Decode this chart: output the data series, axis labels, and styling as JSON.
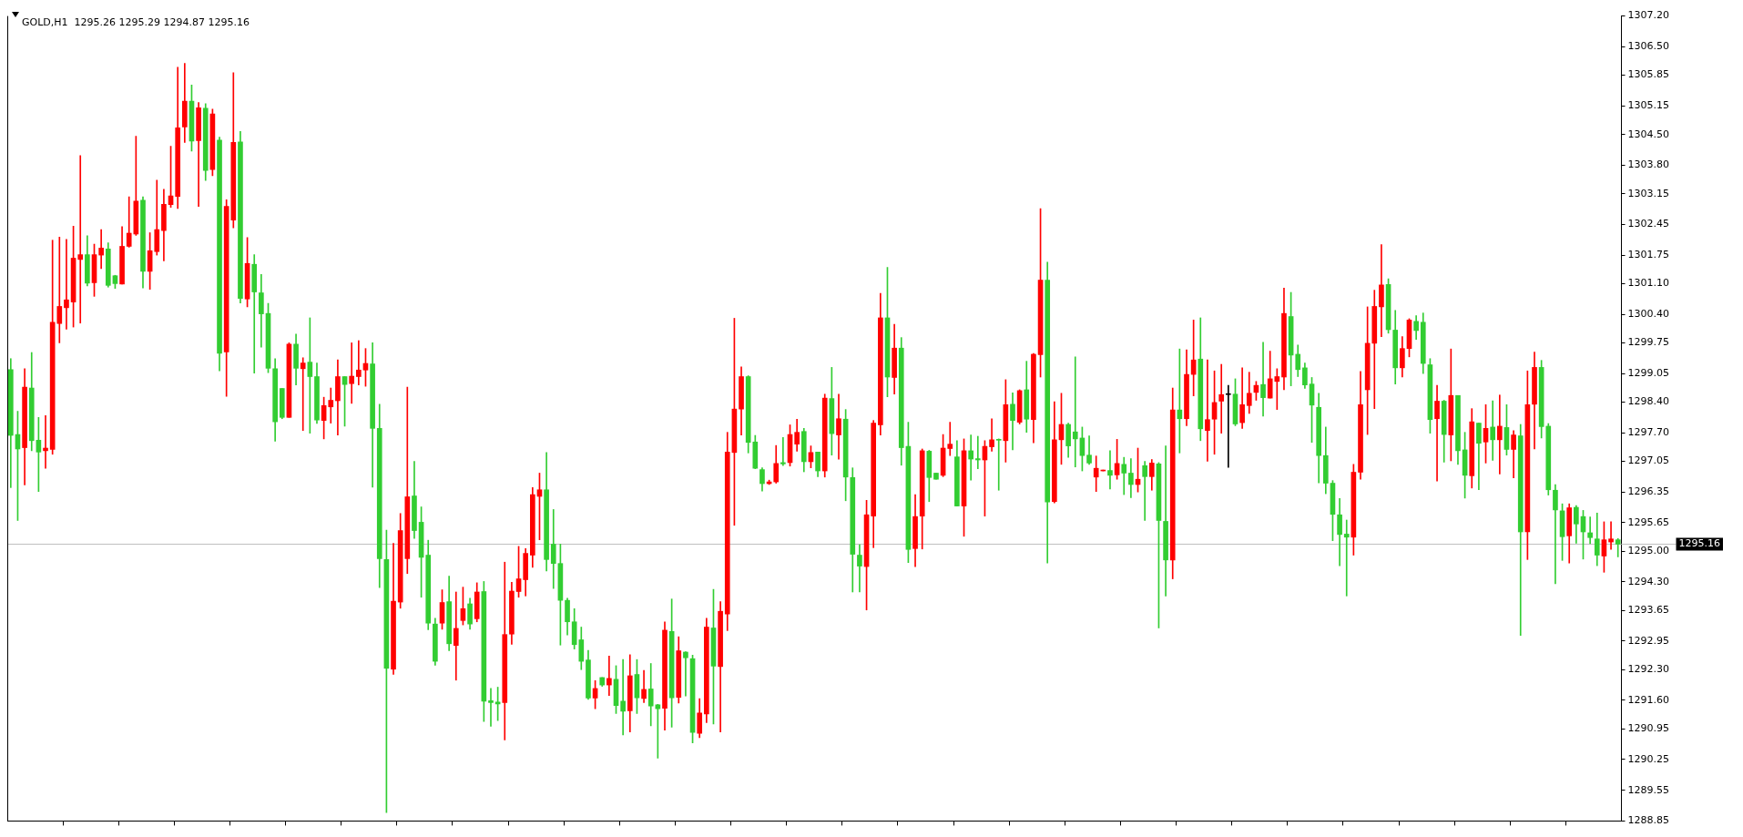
{
  "chart_data": {
    "type": "candlestick",
    "title": "GOLD,H1  1295.26 1295.29 1294.87 1295.16",
    "categories": [
      null,
      null,
      null,
      null,
      null,
      null,
      null,
      null,
      null,
      null,
      null,
      null,
      null,
      null,
      null,
      null,
      null,
      null,
      null,
      null,
      null,
      null,
      null,
      null,
      null,
      null,
      null,
      null,
      null,
      null,
      null,
      null,
      null,
      null,
      null,
      null,
      null,
      null,
      null,
      null,
      null,
      null,
      null,
      null,
      null,
      null,
      null,
      null,
      null,
      null,
      null,
      null,
      null,
      null,
      null,
      null,
      null,
      null,
      null,
      null,
      null,
      null,
      null,
      null,
      null,
      null,
      null,
      null,
      null,
      null,
      null,
      null,
      null,
      null,
      null,
      null,
      null,
      null,
      null,
      null,
      null,
      null,
      null,
      null,
      null,
      null,
      null,
      null,
      null,
      null,
      null,
      null,
      null,
      null,
      null,
      null,
      null,
      null,
      null,
      null,
      null,
      null,
      null,
      null,
      null,
      null,
      null,
      null,
      null,
      null,
      null,
      null,
      null,
      null,
      null,
      null,
      null,
      null,
      null,
      null,
      null,
      null,
      null,
      null,
      null,
      null,
      null,
      null,
      null,
      null,
      null,
      null,
      null,
      null,
      null,
      null,
      null,
      null,
      null,
      null,
      null,
      null,
      null,
      null,
      null,
      null,
      null,
      null,
      null,
      null,
      null,
      null,
      null,
      null,
      null,
      null,
      null,
      null,
      null,
      null,
      null,
      null,
      null,
      null,
      null,
      null,
      null,
      null,
      null,
      null,
      null,
      null,
      null,
      null,
      null,
      null,
      null,
      null,
      null,
      null,
      null,
      null,
      null,
      null,
      null,
      null,
      null,
      null,
      null,
      null,
      null,
      null,
      null,
      null,
      null,
      null,
      null,
      null,
      null,
      null,
      null,
      null,
      null,
      null,
      null,
      null,
      null,
      null,
      null,
      null,
      null,
      null,
      null,
      null,
      null,
      null,
      null,
      null,
      null,
      null,
      null,
      null,
      null,
      null,
      null,
      null,
      null,
      null,
      null,
      null,
      null,
      null
    ],
    "ohlc": [
      [
        1299.14,
        1299.39,
        1296.45,
        1297.64
      ],
      [
        1297.66,
        1298.19,
        1295.7,
        1297.33
      ],
      [
        1297.36,
        1299.16,
        1296.51,
        1298.74
      ],
      [
        1298.72,
        1299.53,
        1297.29,
        1297.52
      ],
      [
        1297.53,
        1298.05,
        1296.36,
        1297.26
      ],
      [
        1297.29,
        1298.09,
        1296.89,
        1297.35
      ],
      [
        1297.32,
        1302.09,
        1297.21,
        1300.22
      ],
      [
        1300.19,
        1302.16,
        1299.75,
        1300.58
      ],
      [
        1300.55,
        1302.11,
        1300.06,
        1300.73
      ],
      [
        1300.68,
        1302.41,
        1300.11,
        1301.68
      ],
      [
        1301.65,
        1304.02,
        1300.2,
        1301.76
      ],
      [
        1301.76,
        1302.19,
        1301.05,
        1301.11
      ],
      [
        1301.12,
        1302.0,
        1300.81,
        1301.76
      ],
      [
        1301.75,
        1302.33,
        1301.44,
        1301.91
      ],
      [
        1301.89,
        1302.03,
        1301.02,
        1301.06
      ],
      [
        1301.28,
        1301.29,
        1300.99,
        1301.1
      ],
      [
        1301.09,
        1302.4,
        1301.09,
        1301.95
      ],
      [
        1301.95,
        1303.08,
        1301.93,
        1302.25
      ],
      [
        1302.23,
        1304.46,
        1302.2,
        1302.98
      ],
      [
        1303.0,
        1303.08,
        1301.0,
        1301.38
      ],
      [
        1301.38,
        1302.26,
        1300.97,
        1301.85
      ],
      [
        1301.83,
        1303.46,
        1301.75,
        1302.33
      ],
      [
        1302.31,
        1303.25,
        1301.62,
        1302.91
      ],
      [
        1302.9,
        1304.23,
        1302.84,
        1303.1
      ],
      [
        1303.09,
        1306.03,
        1302.81,
        1304.65
      ],
      [
        1304.67,
        1306.12,
        1304.32,
        1305.26
      ],
      [
        1305.26,
        1305.63,
        1304.12,
        1304.35
      ],
      [
        1304.36,
        1305.23,
        1302.86,
        1305.11
      ],
      [
        1305.1,
        1305.2,
        1303.45,
        1303.68
      ],
      [
        1303.7,
        1305.08,
        1303.56,
        1304.97
      ],
      [
        1304.37,
        1304.44,
        1299.11,
        1299.51
      ],
      [
        1299.54,
        1303.01,
        1298.53,
        1302.86
      ],
      [
        1302.55,
        1305.91,
        1302.37,
        1304.32
      ],
      [
        1304.33,
        1304.57,
        1300.66,
        1300.76
      ],
      [
        1300.75,
        1302.15,
        1300.57,
        1301.56
      ],
      [
        1301.54,
        1301.76,
        1299.06,
        1300.91
      ],
      [
        1300.89,
        1301.31,
        1299.65,
        1300.41
      ],
      [
        1300.42,
        1300.65,
        1299.07,
        1299.17
      ],
      [
        1299.16,
        1299.39,
        1297.51,
        1297.95
      ],
      [
        1298.71,
        1298.71,
        1298.02,
        1298.05
      ],
      [
        1298.05,
        1299.75,
        1298.05,
        1299.72
      ],
      [
        1299.72,
        1299.95,
        1298.79,
        1299.17
      ],
      [
        1299.16,
        1299.41,
        1297.75,
        1299.29
      ],
      [
        1299.31,
        1300.32,
        1297.69,
        1298.98
      ],
      [
        1298.98,
        1299.29,
        1297.91,
        1297.99
      ],
      [
        1297.98,
        1298.51,
        1297.56,
        1298.32
      ],
      [
        1298.29,
        1298.72,
        1297.92,
        1298.44
      ],
      [
        1298.43,
        1299.36,
        1297.65,
        1298.98
      ],
      [
        1298.98,
        1298.98,
        1297.85,
        1298.8
      ],
      [
        1298.82,
        1299.75,
        1298.37,
        1298.99
      ],
      [
        1298.98,
        1299.8,
        1298.79,
        1299.13
      ],
      [
        1299.13,
        1299.62,
        1298.76,
        1299.28
      ],
      [
        1299.27,
        1299.75,
        1296.46,
        1297.8
      ],
      [
        1297.8,
        1298.35,
        1294.17,
        1294.83
      ],
      [
        1294.81,
        1295.48,
        1289.04,
        1292.33
      ],
      [
        1292.31,
        1295.18,
        1292.19,
        1293.86
      ],
      [
        1293.84,
        1295.86,
        1293.7,
        1295.47
      ],
      [
        1294.83,
        1298.74,
        1294.49,
        1296.24
      ],
      [
        1296.26,
        1297.05,
        1295.29,
        1295.47
      ],
      [
        1295.66,
        1296.01,
        1293.95,
        1294.86
      ],
      [
        1294.91,
        1295.25,
        1293.21,
        1293.36
      ],
      [
        1293.34,
        1293.47,
        1292.4,
        1292.49
      ],
      [
        1293.36,
        1294.12,
        1293.22,
        1293.83
      ],
      [
        1293.85,
        1294.43,
        1292.73,
        1292.89
      ],
      [
        1292.85,
        1294.07,
        1292.06,
        1293.24
      ],
      [
        1293.42,
        1294.18,
        1293.32,
        1293.69
      ],
      [
        1293.8,
        1293.93,
        1293.22,
        1293.34
      ],
      [
        1293.46,
        1294.28,
        1293.39,
        1294.07
      ],
      [
        1294.08,
        1294.31,
        1291.12,
        1291.58
      ],
      [
        1291.59,
        1291.87,
        1291.01,
        1291.55
      ],
      [
        1291.56,
        1291.9,
        1291.14,
        1291.52
      ],
      [
        1291.55,
        1294.75,
        1290.7,
        1293.1
      ],
      [
        1293.11,
        1294.29,
        1292.88,
        1294.09
      ],
      [
        1294.08,
        1295.11,
        1293.95,
        1294.37
      ],
      [
        1294.35,
        1295.06,
        1293.98,
        1294.95
      ],
      [
        1294.91,
        1296.45,
        1294.63,
        1296.29
      ],
      [
        1296.25,
        1296.78,
        1295.26,
        1296.4
      ],
      [
        1296.4,
        1297.25,
        1294.55,
        1294.81
      ],
      [
        1295.16,
        1295.95,
        1294.15,
        1294.72
      ],
      [
        1294.72,
        1295.16,
        1292.86,
        1293.88
      ],
      [
        1293.88,
        1293.93,
        1293.09,
        1293.39
      ],
      [
        1293.39,
        1293.69,
        1292.77,
        1292.87
      ],
      [
        1292.98,
        1293.27,
        1292.3,
        1292.49
      ],
      [
        1292.52,
        1292.74,
        1291.62,
        1291.65
      ],
      [
        1291.65,
        1292.05,
        1291.41,
        1291.87
      ],
      [
        1292.12,
        1292.12,
        1291.92,
        1291.95
      ],
      [
        1291.95,
        1292.61,
        1291.71,
        1292.1
      ],
      [
        1292.08,
        1292.39,
        1291.3,
        1291.48
      ],
      [
        1291.58,
        1292.53,
        1290.81,
        1291.35
      ],
      [
        1291.36,
        1292.64,
        1290.88,
        1292.16
      ],
      [
        1292.19,
        1292.53,
        1291.3,
        1291.66
      ],
      [
        1291.64,
        1292.28,
        1291.55,
        1291.85
      ],
      [
        1291.86,
        1292.44,
        1291.02,
        1291.47
      ],
      [
        1291.5,
        1291.51,
        1290.28,
        1291.41
      ],
      [
        1291.42,
        1293.39,
        1290.92,
        1293.2
      ],
      [
        1293.17,
        1293.91,
        1290.99,
        1291.66
      ],
      [
        1291.67,
        1293.05,
        1291.54,
        1292.73
      ],
      [
        1292.7,
        1292.71,
        1291.7,
        1292.57
      ],
      [
        1292.55,
        1292.63,
        1290.63,
        1290.87
      ],
      [
        1290.85,
        1291.64,
        1290.75,
        1291.31
      ],
      [
        1291.29,
        1293.47,
        1291.09,
        1293.27
      ],
      [
        1293.25,
        1294.13,
        1291.06,
        1292.38
      ],
      [
        1292.37,
        1293.85,
        1290.88,
        1293.63
      ],
      [
        1293.57,
        1297.71,
        1293.19,
        1297.26
      ],
      [
        1297.25,
        1300.31,
        1295.59,
        1298.24
      ],
      [
        1298.24,
        1299.2,
        1297.65,
        1298.98
      ],
      [
        1298.98,
        1299.0,
        1297.24,
        1297.48
      ],
      [
        1297.49,
        1297.64,
        1296.88,
        1296.89
      ],
      [
        1296.86,
        1296.9,
        1296.37,
        1296.54
      ],
      [
        1296.54,
        1296.62,
        1296.52,
        1296.58
      ],
      [
        1296.58,
        1297.41,
        1296.55,
        1297.0
      ],
      [
        1297.02,
        1297.59,
        1296.95,
        1296.99
      ],
      [
        1297.02,
        1297.88,
        1296.94,
        1297.66
      ],
      [
        1297.44,
        1298.01,
        1297.28,
        1297.71
      ],
      [
        1297.73,
        1297.8,
        1296.81,
        1297.04
      ],
      [
        1297.04,
        1297.4,
        1296.9,
        1297.25
      ],
      [
        1297.26,
        1297.26,
        1296.7,
        1296.83
      ],
      [
        1296.83,
        1298.58,
        1296.69,
        1298.49
      ],
      [
        1298.48,
        1299.19,
        1297.19,
        1297.68
      ],
      [
        1297.65,
        1298.58,
        1297.1,
        1298.02
      ],
      [
        1298.01,
        1298.23,
        1296.15,
        1296.69
      ],
      [
        1296.68,
        1296.9,
        1294.07,
        1294.93
      ],
      [
        1294.91,
        1295.15,
        1294.07,
        1294.66
      ],
      [
        1294.65,
        1296.16,
        1293.66,
        1295.83
      ],
      [
        1295.8,
        1297.98,
        1295.08,
        1297.92
      ],
      [
        1297.88,
        1300.88,
        1297.65,
        1300.32
      ],
      [
        1300.32,
        1301.47,
        1298.52,
        1298.97
      ],
      [
        1298.96,
        1300.17,
        1298.58,
        1299.63
      ],
      [
        1299.63,
        1299.87,
        1296.96,
        1297.36
      ],
      [
        1297.39,
        1297.94,
        1294.74,
        1295.04
      ],
      [
        1295.06,
        1296.29,
        1294.65,
        1295.79
      ],
      [
        1295.8,
        1297.33,
        1295.05,
        1297.29
      ],
      [
        1297.28,
        1297.3,
        1296.13,
        1296.68
      ],
      [
        1296.78,
        1296.78,
        1296.64,
        1296.64
      ],
      [
        1296.73,
        1297.66,
        1296.7,
        1297.35
      ],
      [
        1297.34,
        1297.94,
        1297.18,
        1297.44
      ],
      [
        1297.15,
        1297.52,
        1296.03,
        1296.03
      ],
      [
        1296.03,
        1297.56,
        1295.34,
        1297.29
      ],
      [
        1297.29,
        1297.65,
        1296.62,
        1297.1
      ],
      [
        1297.11,
        1297.62,
        1296.88,
        1297.08
      ],
      [
        1297.08,
        1297.52,
        1295.8,
        1297.39
      ],
      [
        1297.38,
        1298.02,
        1297.28,
        1297.54
      ],
      [
        1297.54,
        1297.56,
        1296.39,
        1297.53
      ],
      [
        1297.52,
        1298.91,
        1297.03,
        1298.34
      ],
      [
        1298.35,
        1298.61,
        1297.31,
        1297.98
      ],
      [
        1297.94,
        1298.68,
        1297.9,
        1298.66
      ],
      [
        1298.68,
        1299.33,
        1297.71,
        1298.01
      ],
      [
        1298.0,
        1299.51,
        1297.47,
        1299.49
      ],
      [
        1299.48,
        1302.81,
        1298.97,
        1301.18
      ],
      [
        1301.18,
        1301.59,
        1294.73,
        1296.12
      ],
      [
        1296.13,
        1298.41,
        1296.1,
        1297.54
      ],
      [
        1297.54,
        1298.6,
        1296.98,
        1297.89
      ],
      [
        1297.89,
        1297.92,
        1297.14,
        1297.4
      ],
      [
        1297.72,
        1299.43,
        1296.92,
        1297.56
      ],
      [
        1297.58,
        1297.83,
        1296.83,
        1297.18
      ],
      [
        1297.19,
        1297.63,
        1296.98,
        1297.01
      ],
      [
        1296.69,
        1297.17,
        1296.36,
        1296.89
      ],
      [
        1296.83,
        1296.85,
        1296.83,
        1296.85
      ],
      [
        1296.84,
        1297.29,
        1296.42,
        1296.73
      ],
      [
        1296.74,
        1297.55,
        1296.64,
        1297.0
      ],
      [
        1296.98,
        1297.14,
        1296.29,
        1296.78
      ],
      [
        1296.78,
        1297.11,
        1296.22,
        1296.52
      ],
      [
        1296.52,
        1297.35,
        1296.35,
        1296.64
      ],
      [
        1296.95,
        1297.05,
        1295.7,
        1296.7
      ],
      [
        1296.7,
        1297.09,
        1296.39,
        1297.01
      ],
      [
        1296.99,
        1297.02,
        1293.25,
        1295.7
      ],
      [
        1295.68,
        1297.4,
        1293.98,
        1294.8
      ],
      [
        1294.8,
        1298.72,
        1294.37,
        1298.22
      ],
      [
        1298.22,
        1299.61,
        1297.24,
        1298.02
      ],
      [
        1298.02,
        1299.59,
        1297.86,
        1299.03
      ],
      [
        1299.03,
        1300.27,
        1298.54,
        1299.36
      ],
      [
        1299.38,
        1300.32,
        1297.52,
        1297.79
      ],
      [
        1297.75,
        1299.36,
        1297.05,
        1298.0
      ],
      [
        1298.01,
        1299.11,
        1297.21,
        1298.39
      ],
      [
        1298.42,
        1299.26,
        1297.69,
        1298.57
      ],
      [
        1298.57,
        1298.78,
        1296.91,
        1298.57
      ],
      [
        1298.58,
        1298.93,
        1297.86,
        1297.9
      ],
      [
        1297.93,
        1299.18,
        1297.8,
        1298.34
      ],
      [
        1298.32,
        1299.08,
        1298.14,
        1298.6
      ],
      [
        1298.62,
        1298.87,
        1298.44,
        1298.78
      ],
      [
        1298.8,
        1299.76,
        1298.08,
        1298.5
      ],
      [
        1298.49,
        1299.56,
        1298.49,
        1298.93
      ],
      [
        1298.87,
        1299.16,
        1298.23,
        1298.98
      ],
      [
        1298.97,
        1301.0,
        1298.68,
        1300.42
      ],
      [
        1300.35,
        1300.9,
        1298.77,
        1299.47
      ],
      [
        1299.49,
        1299.7,
        1298.98,
        1299.14
      ],
      [
        1299.18,
        1299.29,
        1298.71,
        1298.79
      ],
      [
        1298.81,
        1298.96,
        1297.48,
        1298.33
      ],
      [
        1298.28,
        1298.6,
        1296.56,
        1297.18
      ],
      [
        1297.18,
        1297.83,
        1296.31,
        1296.55
      ],
      [
        1296.55,
        1296.61,
        1295.24,
        1295.84
      ],
      [
        1295.83,
        1296.2,
        1294.67,
        1295.38
      ],
      [
        1295.39,
        1295.71,
        1293.98,
        1295.32
      ],
      [
        1295.32,
        1296.98,
        1294.91,
        1296.8
      ],
      [
        1296.8,
        1299.1,
        1296.64,
        1298.34
      ],
      [
        1298.68,
        1300.57,
        1297.66,
        1299.74
      ],
      [
        1299.74,
        1300.95,
        1298.25,
        1300.58
      ],
      [
        1300.57,
        1301.99,
        1299.89,
        1301.07
      ],
      [
        1301.08,
        1301.21,
        1299.97,
        1300.05
      ],
      [
        1300.04,
        1300.49,
        1298.81,
        1299.18
      ],
      [
        1299.18,
        1299.89,
        1298.97,
        1299.62
      ],
      [
        1299.62,
        1300.3,
        1299.43,
        1300.27
      ],
      [
        1300.24,
        1300.37,
        1299.83,
        1300.03
      ],
      [
        1300.22,
        1300.43,
        1299.05,
        1299.28
      ],
      [
        1299.25,
        1299.39,
        1297.69,
        1298.0
      ],
      [
        1298.02,
        1298.78,
        1296.6,
        1298.42
      ],
      [
        1298.42,
        1298.44,
        1297.03,
        1297.66
      ],
      [
        1297.65,
        1299.61,
        1297.06,
        1298.55
      ],
      [
        1298.55,
        1298.55,
        1296.98,
        1297.29
      ],
      [
        1297.31,
        1297.71,
        1296.21,
        1296.73
      ],
      [
        1296.72,
        1298.25,
        1296.44,
        1297.95
      ],
      [
        1297.92,
        1297.92,
        1296.4,
        1297.46
      ],
      [
        1297.49,
        1298.34,
        1297.01,
        1297.8
      ],
      [
        1297.83,
        1298.43,
        1297.07,
        1297.54
      ],
      [
        1297.54,
        1298.56,
        1296.76,
        1297.85
      ],
      [
        1297.82,
        1298.34,
        1297.19,
        1297.32
      ],
      [
        1297.32,
        1297.75,
        1296.67,
        1297.65
      ],
      [
        1297.63,
        1297.89,
        1293.08,
        1295.44
      ],
      [
        1295.44,
        1299.11,
        1294.81,
        1298.34
      ],
      [
        1298.35,
        1299.54,
        1297.33,
        1299.19
      ],
      [
        1299.19,
        1299.35,
        1297.58,
        1297.84
      ],
      [
        1297.85,
        1297.91,
        1296.28,
        1296.4
      ],
      [
        1296.39,
        1296.52,
        1294.26,
        1295.94
      ],
      [
        1295.92,
        1296.08,
        1294.79,
        1295.33
      ],
      [
        1295.35,
        1296.08,
        1294.73,
        1295.99
      ],
      [
        1296.0,
        1296.04,
        1295.18,
        1295.62
      ],
      [
        1295.79,
        1295.93,
        1294.82,
        1295.44
      ],
      [
        1295.42,
        1295.78,
        1295.17,
        1295.31
      ],
      [
        1295.28,
        1295.87,
        1294.67,
        1294.91
      ],
      [
        1294.89,
        1295.67,
        1294.52,
        1295.26
      ],
      [
        1295.21,
        1295.67,
        1295.04,
        1295.28
      ],
      [
        1295.26,
        1295.29,
        1294.87,
        1295.16
      ]
    ],
    "colors": [
      "#32cd32",
      "#32cd32",
      "#ff0000",
      "#32cd32",
      "#32cd32",
      "#ff0000",
      "#ff0000",
      "#ff0000",
      "#ff0000",
      "#ff0000",
      "#ff0000",
      "#32cd32",
      "#ff0000",
      "#ff0000",
      "#32cd32",
      "#32cd32",
      "#ff0000",
      "#ff0000",
      "#ff0000",
      "#32cd32",
      "#ff0000",
      "#ff0000",
      "#ff0000",
      "#ff0000",
      "#ff0000",
      "#ff0000",
      "#32cd32",
      "#ff0000",
      "#32cd32",
      "#ff0000",
      "#32cd32",
      "#ff0000",
      "#ff0000",
      "#32cd32",
      "#ff0000",
      "#32cd32",
      "#32cd32",
      "#32cd32",
      "#32cd32",
      "#32cd32",
      "#ff0000",
      "#32cd32",
      "#ff0000",
      "#32cd32",
      "#32cd32",
      "#ff0000",
      "#ff0000",
      "#ff0000",
      "#32cd32",
      "#ff0000",
      "#ff0000",
      "#ff0000",
      "#32cd32",
      "#32cd32",
      "#32cd32",
      "#ff0000",
      "#ff0000",
      "#ff0000",
      "#32cd32",
      "#32cd32",
      "#32cd32",
      "#32cd32",
      "#ff0000",
      "#32cd32",
      "#ff0000",
      "#ff0000",
      "#32cd32",
      "#ff0000",
      "#32cd32",
      "#32cd32",
      "#32cd32",
      "#ff0000",
      "#ff0000",
      "#ff0000",
      "#ff0000",
      "#ff0000",
      "#ff0000",
      "#32cd32",
      "#32cd32",
      "#32cd32",
      "#32cd32",
      "#32cd32",
      "#32cd32",
      "#32cd32",
      "#ff0000",
      "#32cd32",
      "#ff0000",
      "#32cd32",
      "#32cd32",
      "#ff0000",
      "#32cd32",
      "#ff0000",
      "#32cd32",
      "#32cd32",
      "#ff0000",
      "#32cd32",
      "#ff0000",
      "#32cd32",
      "#32cd32",
      "#ff0000",
      "#ff0000",
      "#32cd32",
      "#ff0000",
      "#ff0000",
      "#ff0000",
      "#ff0000",
      "#32cd32",
      "#32cd32",
      "#32cd32",
      "#ff0000",
      "#ff0000",
      "#32cd32",
      "#ff0000",
      "#ff0000",
      "#32cd32",
      "#ff0000",
      "#32cd32",
      "#ff0000",
      "#32cd32",
      "#ff0000",
      "#32cd32",
      "#32cd32",
      "#32cd32",
      "#ff0000",
      "#ff0000",
      "#ff0000",
      "#32cd32",
      "#ff0000",
      "#32cd32",
      "#32cd32",
      "#ff0000",
      "#ff0000",
      "#32cd32",
      "#32cd32",
      "#ff0000",
      "#ff0000",
      "#32cd32",
      "#ff0000",
      "#32cd32",
      "#32cd32",
      "#ff0000",
      "#ff0000",
      "#32cd32",
      "#ff0000",
      "#32cd32",
      "#ff0000",
      "#32cd32",
      "#ff0000",
      "#ff0000",
      "#32cd32",
      "#ff0000",
      "#ff0000",
      "#32cd32",
      "#32cd32",
      "#32cd32",
      "#32cd32",
      "#ff0000",
      "#ff0000",
      "#32cd32",
      "#ff0000",
      "#32cd32",
      "#32cd32",
      "#ff0000",
      "#32cd32",
      "#ff0000",
      "#32cd32",
      "#32cd32",
      "#ff0000",
      "#32cd32",
      "#ff0000",
      "#ff0000",
      "#32cd32",
      "#ff0000",
      "#ff0000",
      "#ff0000",
      "#000000",
      "#32cd32",
      "#ff0000",
      "#ff0000",
      "#ff0000",
      "#32cd32",
      "#ff0000",
      "#ff0000",
      "#ff0000",
      "#32cd32",
      "#32cd32",
      "#32cd32",
      "#32cd32",
      "#32cd32",
      "#32cd32",
      "#32cd32",
      "#32cd32",
      "#32cd32",
      "#ff0000",
      "#ff0000",
      "#ff0000",
      "#ff0000",
      "#ff0000",
      "#32cd32",
      "#32cd32",
      "#ff0000",
      "#ff0000",
      "#32cd32",
      "#32cd32",
      "#32cd32",
      "#ff0000",
      "#32cd32",
      "#ff0000",
      "#32cd32",
      "#32cd32",
      "#ff0000",
      "#32cd32",
      "#ff0000",
      "#32cd32",
      "#ff0000",
      "#32cd32",
      "#ff0000",
      "#32cd32",
      "#ff0000",
      "#ff0000",
      "#32cd32",
      "#32cd32",
      "#32cd32",
      "#32cd32",
      "#ff0000",
      "#32cd32",
      "#32cd32",
      "#32cd32",
      "#32cd32",
      "#ff0000",
      "#ff0000",
      "#32cd32"
    ],
    "ylim": [
      1288.85,
      1307.2
    ],
    "yticks": [
      1288.85,
      1289.55,
      1290.25,
      1290.95,
      {
        "value": 1291.6,
        "label": "1291.60"
      },
      {
        "value": 1292.3,
        "label": "1292.30"
      },
      1292.95,
      1293.65,
      {
        "value": 1294.3,
        "label": "1294.30"
      },
      {
        "value": 1295.0,
        "label": "1295.00"
      },
      1295.65,
      1296.35,
      1297.05,
      {
        "value": 1297.7,
        "label": "1297.70"
      },
      {
        "value": 1298.4,
        "label": "1298.40"
      },
      1299.05,
      1299.75,
      {
        "value": 1300.4,
        "label": "1300.40"
      },
      {
        "value": 1301.1,
        "label": "1301.10"
      },
      1301.75,
      1302.45,
      1303.15,
      {
        "value": 1303.8,
        "label": "1303.80"
      },
      {
        "value": 1304.5,
        "label": "1304.50"
      },
      1305.15,
      1305.85,
      {
        "value": 1306.5,
        "label": "1306.50"
      },
      {
        "value": 1307.2,
        "label": "1307.20"
      }
    ],
    "ref_lines": [
      {
        "axis": "y",
        "value": 1295.16,
        "label": "1295.16",
        "color": "#c0c0c0"
      }
    ],
    "tick_labels": "y",
    "grid": false,
    "legend": false
  }
}
